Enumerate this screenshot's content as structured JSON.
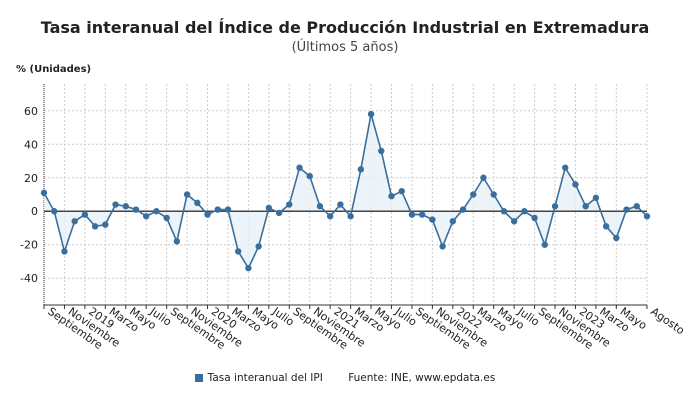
{
  "chart_data": {
    "type": "line",
    "title": "Tasa interanual del Índice de Producción Industrial en Extremadura",
    "subtitle": "(Últimos 5 años)",
    "ylabel": "% (Unidades)",
    "ylim": [
      -56,
      76
    ],
    "yticks": [
      -40,
      -20,
      0,
      20,
      40,
      60
    ],
    "grid": true,
    "legend_placement": "bottom",
    "x": [
      "2018-09",
      "2018-10",
      "2018-11",
      "2018-12",
      "2019-01",
      "2019-02",
      "2019-03",
      "2019-04",
      "2019-05",
      "2019-06",
      "2019-07",
      "2019-08",
      "2019-09",
      "2019-10",
      "2019-11",
      "2019-12",
      "2020-01",
      "2020-02",
      "2020-03",
      "2020-04",
      "2020-05",
      "2020-06",
      "2020-07",
      "2020-08",
      "2020-09",
      "2020-10",
      "2020-11",
      "2020-12",
      "2021-01",
      "2021-02",
      "2021-03",
      "2021-04",
      "2021-05",
      "2021-06",
      "2021-07",
      "2021-08",
      "2021-09",
      "2021-10",
      "2021-11",
      "2021-12",
      "2022-01",
      "2022-02",
      "2022-03",
      "2022-04",
      "2022-05",
      "2022-06",
      "2022-07",
      "2022-08",
      "2022-09",
      "2022-10",
      "2022-11",
      "2022-12",
      "2023-01",
      "2023-02",
      "2023-03",
      "2023-04",
      "2023-05",
      "2023-06",
      "2023-07",
      "2023-08"
    ],
    "xtick_labels": [
      {
        "i": 0,
        "label": "Septiembre"
      },
      {
        "i": 2,
        "label": "Noviembre"
      },
      {
        "i": 4,
        "label": "2019"
      },
      {
        "i": 6,
        "label": "Marzo"
      },
      {
        "i": 8,
        "label": "Mayo"
      },
      {
        "i": 10,
        "label": "Julio"
      },
      {
        "i": 12,
        "label": "Septiembre"
      },
      {
        "i": 14,
        "label": "Noviembre"
      },
      {
        "i": 16,
        "label": "2020"
      },
      {
        "i": 18,
        "label": "Marzo"
      },
      {
        "i": 20,
        "label": "Mayo"
      },
      {
        "i": 22,
        "label": "Julio"
      },
      {
        "i": 24,
        "label": "Septiembre"
      },
      {
        "i": 26,
        "label": "Noviembre"
      },
      {
        "i": 28,
        "label": "2021"
      },
      {
        "i": 30,
        "label": "Marzo"
      },
      {
        "i": 32,
        "label": "Mayo"
      },
      {
        "i": 34,
        "label": "Julio"
      },
      {
        "i": 36,
        "label": "Septiembre"
      },
      {
        "i": 38,
        "label": "Noviembre"
      },
      {
        "i": 40,
        "label": "2022"
      },
      {
        "i": 42,
        "label": "Marzo"
      },
      {
        "i": 44,
        "label": "Mayo"
      },
      {
        "i": 46,
        "label": "Julio"
      },
      {
        "i": 48,
        "label": "Septiembre"
      },
      {
        "i": 50,
        "label": "Noviembre"
      },
      {
        "i": 52,
        "label": "2023"
      },
      {
        "i": 54,
        "label": "Marzo"
      },
      {
        "i": 56,
        "label": "Mayo"
      },
      {
        "i": 59,
        "label": "Agosto"
      }
    ],
    "series": [
      {
        "name": "Tasa interanual del IPI",
        "color": "#3a6e9c",
        "values": [
          11,
          0,
          -24,
          -6,
          -2,
          -9,
          -8,
          4,
          3,
          1,
          -3,
          0,
          -4,
          -18,
          10,
          5,
          -2,
          1,
          1,
          -24,
          -34,
          -21,
          2,
          -1,
          4,
          26,
          21,
          3,
          -3,
          4,
          -3,
          25,
          58,
          36,
          9,
          12,
          -2,
          -2,
          -5,
          -21,
          -6,
          1,
          10,
          20,
          10,
          0,
          -6,
          0,
          -4,
          -20,
          3,
          26,
          16,
          3,
          8,
          -9,
          -16,
          1,
          3,
          -3
        ]
      }
    ],
    "source": "Fuente: INE, www.epdata.es"
  }
}
